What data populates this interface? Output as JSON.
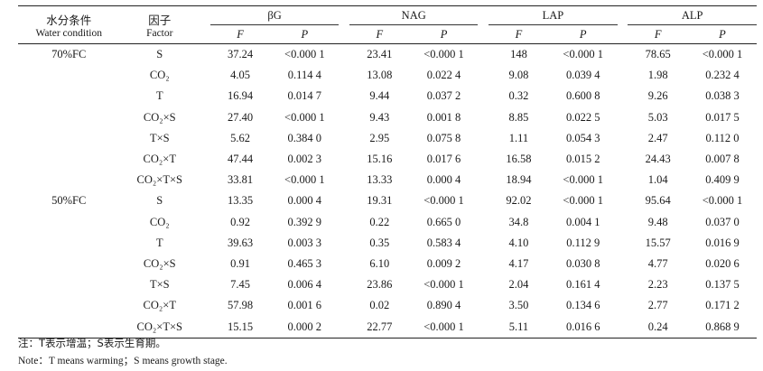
{
  "header": {
    "water_zh": "水分条件",
    "water_en": "Water condition",
    "factor_zh": "因子",
    "factor_en": "Factor",
    "groups": [
      "βG",
      "NAG",
      "LAP",
      "ALP"
    ],
    "sub_f": "F",
    "sub_p": "P"
  },
  "blocks": [
    {
      "water": "70%FC",
      "rows": [
        {
          "factor": "S",
          "values": [
            "37.24",
            "<0.000 1",
            "23.41",
            "<0.000 1",
            "148",
            "<0.000 1",
            "78.65",
            "<0.000 1"
          ]
        },
        {
          "factor": "CO₂",
          "values": [
            "4.05",
            "0.114 4",
            "13.08",
            "0.022 4",
            "9.08",
            "0.039 4",
            "1.98",
            "0.232 4"
          ]
        },
        {
          "factor": "T",
          "values": [
            "16.94",
            "0.014 7",
            "9.44",
            "0.037 2",
            "0.32",
            "0.600 8",
            "9.26",
            "0.038 3"
          ]
        },
        {
          "factor": "CO₂×S",
          "values": [
            "27.40",
            "<0.000 1",
            "9.43",
            "0.001 8",
            "8.85",
            "0.022 5",
            "5.03",
            "0.017 5"
          ]
        },
        {
          "factor": "T×S",
          "values": [
            "5.62",
            "0.384 0",
            "2.95",
            "0.075 8",
            "1.11",
            "0.054 3",
            "2.47",
            "0.112 0"
          ]
        },
        {
          "factor": "CO₂×T",
          "values": [
            "47.44",
            "0.002 3",
            "15.16",
            "0.017 6",
            "16.58",
            "0.015 2",
            "24.43",
            "0.007 8"
          ]
        },
        {
          "factor": "CO₂×T×S",
          "values": [
            "33.81",
            "<0.000 1",
            "13.33",
            "0.000 4",
            "18.94",
            "<0.000 1",
            "1.04",
            "0.409 9"
          ]
        }
      ]
    },
    {
      "water": "50%FC",
      "rows": [
        {
          "factor": "S",
          "values": [
            "13.35",
            "0.000 4",
            "19.31",
            "<0.000 1",
            "92.02",
            "<0.000 1",
            "95.64",
            "<0.000 1"
          ]
        },
        {
          "factor": "CO₂",
          "values": [
            "0.92",
            "0.392 9",
            "0.22",
            "0.665 0",
            "34.8",
            "0.004 1",
            "9.48",
            "0.037 0"
          ]
        },
        {
          "factor": "T",
          "values": [
            "39.63",
            "0.003 3",
            "0.35",
            "0.583 4",
            "4.10",
            "0.112 9",
            "15.57",
            "0.016 9"
          ]
        },
        {
          "factor": "CO₂×S",
          "values": [
            "0.91",
            "0.465 3",
            "6.10",
            "0.009 2",
            "4.17",
            "0.030 8",
            "4.77",
            "0.020 6"
          ]
        },
        {
          "factor": "T×S",
          "values": [
            "7.45",
            "0.006 4",
            "23.86",
            "<0.000 1",
            "2.04",
            "0.161 4",
            "2.23",
            "0.137 5"
          ]
        },
        {
          "factor": "CO₂×T",
          "values": [
            "57.98",
            "0.001 6",
            "0.02",
            "0.890 4",
            "3.50",
            "0.134 6",
            "2.77",
            "0.171 2"
          ]
        },
        {
          "factor": "CO₂×T×S",
          "values": [
            "15.15",
            "0.000 2",
            "22.77",
            "<0.000 1",
            "5.11",
            "0.016 6",
            "0.24",
            "0.868 9"
          ]
        }
      ]
    }
  ],
  "notes": {
    "zh": "注：T表示增温；S表示生育期。",
    "en": "Note：T means warming；S means growth stage."
  }
}
